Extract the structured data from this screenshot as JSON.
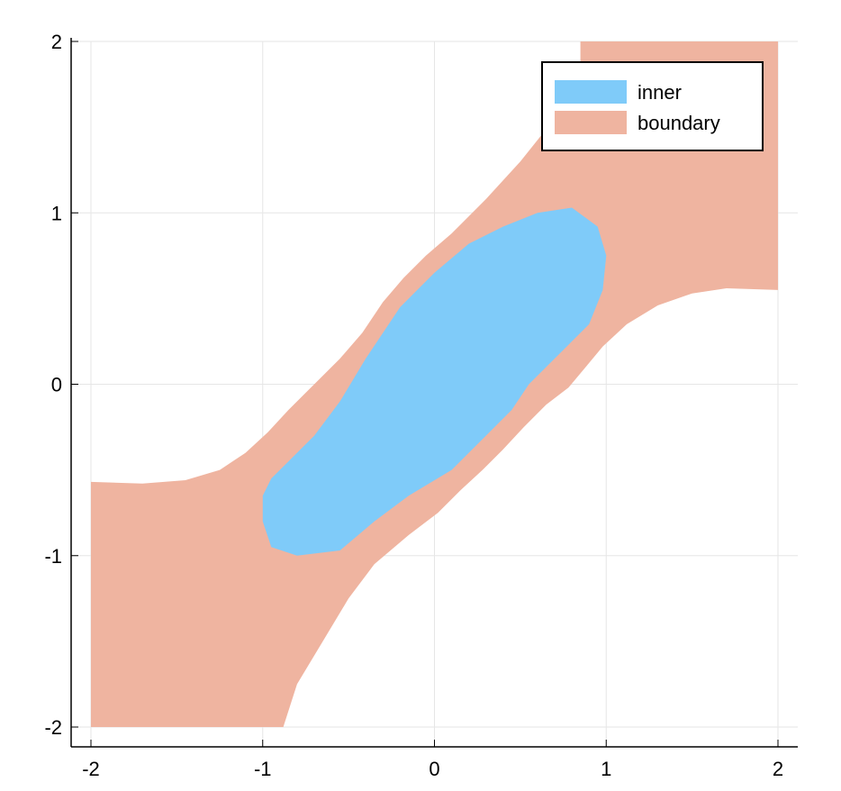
{
  "chart_data": {
    "type": "area",
    "xlim": [
      -2,
      2
    ],
    "ylim": [
      -2,
      2
    ],
    "x_ticks": [
      -2,
      -1,
      0,
      1,
      2
    ],
    "y_ticks": [
      -2,
      -1,
      0,
      1,
      2
    ],
    "x_tick_labels": [
      "-2",
      "-1",
      "0",
      "1",
      "2"
    ],
    "y_tick_labels": [
      "-2",
      "-1",
      "0",
      "1",
      "2"
    ],
    "grid": true,
    "legend_position": "top-right",
    "series": [
      {
        "name": "boundary",
        "color": "#efb4a0",
        "polygon": [
          [
            -2.0,
            -0.57
          ],
          [
            -1.7,
            -0.58
          ],
          [
            -1.45,
            -0.56
          ],
          [
            -1.25,
            -0.5
          ],
          [
            -1.1,
            -0.4
          ],
          [
            -0.97,
            -0.28
          ],
          [
            -0.85,
            -0.15
          ],
          [
            -0.7,
            0.0
          ],
          [
            -0.55,
            0.15
          ],
          [
            -0.42,
            0.3
          ],
          [
            -0.3,
            0.48
          ],
          [
            -0.18,
            0.62
          ],
          [
            -0.05,
            0.75
          ],
          [
            0.1,
            0.88
          ],
          [
            0.3,
            1.08
          ],
          [
            0.5,
            1.3
          ],
          [
            0.7,
            1.55
          ],
          [
            0.85,
            1.8
          ],
          [
            0.85,
            2.0
          ],
          [
            2.0,
            2.0
          ],
          [
            2.0,
            0.55
          ],
          [
            1.7,
            0.56
          ],
          [
            1.5,
            0.53
          ],
          [
            1.3,
            0.46
          ],
          [
            1.12,
            0.35
          ],
          [
            0.98,
            0.22
          ],
          [
            0.88,
            0.1
          ],
          [
            0.78,
            -0.02
          ],
          [
            0.65,
            -0.12
          ],
          [
            0.52,
            -0.25
          ],
          [
            0.4,
            -0.38
          ],
          [
            0.28,
            -0.5
          ],
          [
            0.15,
            -0.62
          ],
          [
            0.02,
            -0.75
          ],
          [
            -0.15,
            -0.88
          ],
          [
            -0.35,
            -1.05
          ],
          [
            -0.5,
            -1.25
          ],
          [
            -0.65,
            -1.5
          ],
          [
            -0.8,
            -1.75
          ],
          [
            -0.88,
            -2.0
          ],
          [
            -2.0,
            -2.0
          ]
        ]
      },
      {
        "name": "inner",
        "color": "#7fcbf9",
        "polygon": [
          [
            -1.0,
            -0.65
          ],
          [
            -0.95,
            -0.55
          ],
          [
            -0.85,
            -0.45
          ],
          [
            -0.7,
            -0.3
          ],
          [
            -0.55,
            -0.1
          ],
          [
            -0.4,
            0.15
          ],
          [
            -0.2,
            0.45
          ],
          [
            0.0,
            0.65
          ],
          [
            0.2,
            0.82
          ],
          [
            0.4,
            0.92
          ],
          [
            0.6,
            1.0
          ],
          [
            0.8,
            1.03
          ],
          [
            0.95,
            0.92
          ],
          [
            1.0,
            0.75
          ],
          [
            0.98,
            0.55
          ],
          [
            0.9,
            0.35
          ],
          [
            0.7,
            0.15
          ],
          [
            0.55,
            0.0
          ],
          [
            0.45,
            -0.15
          ],
          [
            0.3,
            -0.3
          ],
          [
            0.1,
            -0.5
          ],
          [
            -0.15,
            -0.65
          ],
          [
            -0.35,
            -0.8
          ],
          [
            -0.55,
            -0.97
          ],
          [
            -0.8,
            -1.0
          ],
          [
            -0.95,
            -0.95
          ],
          [
            -1.0,
            -0.8
          ]
        ]
      }
    ],
    "legend": [
      "inner",
      "boundary"
    ]
  }
}
